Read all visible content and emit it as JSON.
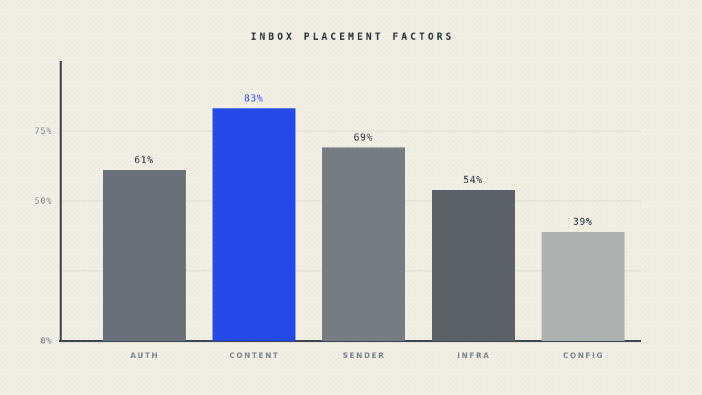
{
  "chart_data": {
    "type": "bar",
    "title": "INBOX PLACEMENT FACTORS",
    "categories": [
      "AUTH",
      "CONTENT",
      "SENDER",
      "INFRA",
      "CONFIG"
    ],
    "values": [
      61,
      83,
      69,
      54,
      39
    ],
    "value_labels": [
      "61%",
      "83%",
      "69%",
      "54%",
      "39%"
    ],
    "bar_colors": [
      "#68707a",
      "#2548e8",
      "#757c82",
      "#5a6169",
      "#adb0b0"
    ],
    "value_label_colors": [
      "#232f3b",
      "#2b4ce9",
      "#232f3b",
      "#232f3b",
      "#232f3b"
    ],
    "highlighted_category": "CONTENT",
    "xlabel": "",
    "ylabel": "",
    "ylim": [
      0,
      100
    ],
    "yticks": [
      {
        "value": 0,
        "label": "0%",
        "gridline": false
      },
      {
        "value": 25,
        "label": "",
        "gridline": true
      },
      {
        "value": 50,
        "label": "50%",
        "gridline": true
      },
      {
        "value": 75,
        "label": "75%",
        "gridline": true
      }
    ],
    "grid": "horizontal",
    "legend": "none"
  },
  "colors": {
    "background": "#f1eee4",
    "axis": "#3c4552",
    "gridline": "#e6e2d3",
    "title_text": "#232f3b",
    "tick_text": "#78828e",
    "category_text": "#78828e"
  }
}
